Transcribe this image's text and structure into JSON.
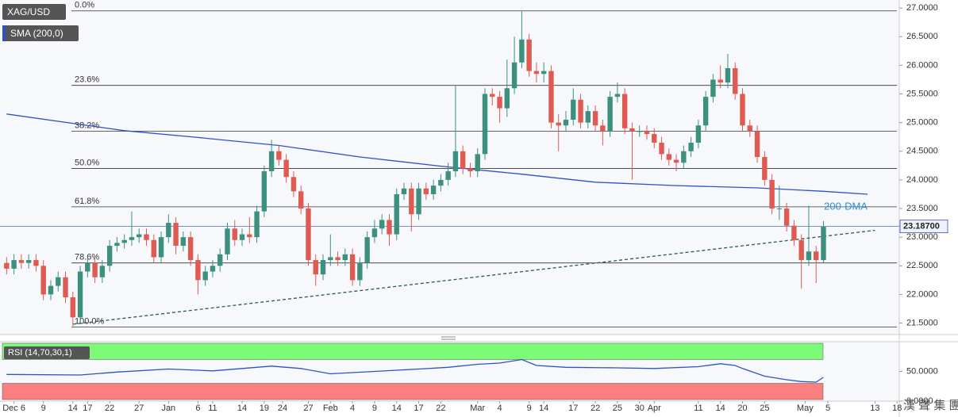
{
  "chart_data": {
    "type": "candlestick",
    "symbol": "XAG/USD",
    "indicator": "SMA (200,0)",
    "colors": {
      "up": "#3d8f7e",
      "down": "#df5a50",
      "sma": "#3050c8",
      "rsi": "#3050c8",
      "trend": "#2a5a4a"
    },
    "xlim": [
      -0.9,
      121.3
    ],
    "ylim": [
      21.3,
      27.14
    ],
    "yticks": [
      {
        "value": 21.5,
        "label": "21.5000"
      },
      {
        "value": 22.0,
        "label": "22.0000"
      },
      {
        "value": 22.5,
        "label": "22.5000"
      },
      {
        "value": 23.0,
        "label": "23.0000"
      },
      {
        "value": 23.5,
        "label": "23.5000"
      },
      {
        "value": 24.0,
        "label": "24.0000"
      },
      {
        "value": 24.5,
        "label": "24.5000"
      },
      {
        "value": 25.0,
        "label": "25.0000"
      },
      {
        "value": 25.5,
        "label": "25.5000"
      },
      {
        "value": 26.0,
        "label": "26.0000"
      },
      {
        "value": 26.5,
        "label": "26.5000"
      },
      {
        "value": 27.0,
        "label": "27.0000"
      }
    ],
    "xticks": [
      {
        "value": 1,
        "label": "Dec 6"
      },
      {
        "value": 5,
        "label": "9"
      },
      {
        "value": 9,
        "label": "14"
      },
      {
        "value": 11,
        "label": "17"
      },
      {
        "value": 14,
        "label": "22"
      },
      {
        "value": 18,
        "label": "27"
      },
      {
        "value": 22,
        "label": "Jan"
      },
      {
        "value": 26,
        "label": "6"
      },
      {
        "value": 28,
        "label": "11"
      },
      {
        "value": 32,
        "label": "14"
      },
      {
        "value": 35,
        "label": "19"
      },
      {
        "value": 37.5,
        "label": "24"
      },
      {
        "value": 41,
        "label": "27"
      },
      {
        "value": 44,
        "label": "Feb"
      },
      {
        "value": 47,
        "label": "4"
      },
      {
        "value": 50,
        "label": "9"
      },
      {
        "value": 53,
        "label": "14"
      },
      {
        "value": 56,
        "label": "17"
      },
      {
        "value": 59,
        "label": "22"
      },
      {
        "value": 64,
        "label": "Mar"
      },
      {
        "value": 67,
        "label": "4"
      },
      {
        "value": 71,
        "label": "9"
      },
      {
        "value": 73,
        "label": "14"
      },
      {
        "value": 77,
        "label": "17"
      },
      {
        "value": 80,
        "label": "22"
      },
      {
        "value": 83,
        "label": "25"
      },
      {
        "value": 86,
        "label": "30"
      },
      {
        "value": 88,
        "label": "Apr"
      },
      {
        "value": 94,
        "label": "11"
      },
      {
        "value": 97,
        "label": "14"
      },
      {
        "value": 100,
        "label": "20"
      },
      {
        "value": 103,
        "label": "25"
      },
      {
        "value": 108.5,
        "label": "May"
      },
      {
        "value": 111.6,
        "label": "5"
      },
      {
        "value": 118,
        "label": "13"
      },
      {
        "value": 121,
        "label": "18"
      }
    ],
    "open": [
      22.55,
      22.45,
      22.6,
      22.55,
      22.6,
      22.5,
      22.0,
      22.15,
      22.3,
      21.95,
      21.6,
      22.4,
      22.55,
      22.3,
      22.5,
      22.85,
      22.9,
      22.95,
      23.0,
      23.05,
      22.95,
      22.65,
      23.0,
      23.25,
      22.85,
      23.0,
      22.6,
      22.25,
      22.4,
      22.5,
      22.7,
      23.15,
      22.95,
      23.05,
      23.0,
      23.45,
      24.15,
      24.5,
      24.35,
      24.05,
      23.8,
      23.5,
      22.6,
      22.35,
      22.6,
      22.65,
      22.6,
      22.7,
      22.25,
      22.55,
      23.0,
      23.15,
      23.3,
      23.05,
      23.75,
      23.85,
      23.4,
      23.85,
      23.75,
      23.9,
      24.0,
      24.15,
      24.5,
      24.2,
      24.15,
      24.45,
      25.5,
      25.45,
      25.25,
      25.6,
      26.05,
      26.45,
      25.9,
      25.85,
      25.9,
      25.0,
      24.95,
      25.05,
      25.4,
      25.0,
      25.2,
      24.95,
      24.85,
      25.45,
      25.5,
      24.9,
      24.85,
      24.85,
      24.8,
      24.65,
      24.45,
      24.35,
      24.3,
      24.5,
      24.65,
      24.95,
      25.45,
      25.75,
      25.7,
      25.95,
      25.5,
      24.95,
      24.85,
      24.4,
      24.0,
      23.5,
      23.5,
      23.2,
      22.95,
      22.6,
      22.75,
      22.6
    ],
    "high": [
      22.65,
      22.7,
      22.7,
      22.7,
      22.7,
      22.6,
      22.25,
      22.4,
      22.4,
      22.05,
      22.5,
      22.65,
      22.65,
      22.6,
      22.95,
      23.0,
      23.05,
      23.45,
      23.15,
      23.15,
      23.05,
      23.1,
      23.4,
      23.35,
      23.1,
      23.1,
      22.7,
      22.5,
      22.6,
      22.8,
      23.25,
      23.3,
      23.15,
      23.35,
      23.55,
      24.25,
      24.7,
      24.6,
      24.45,
      24.15,
      23.9,
      23.6,
      22.7,
      22.7,
      23.05,
      22.75,
      22.8,
      22.8,
      22.65,
      23.1,
      23.3,
      23.4,
      23.4,
      23.85,
      23.95,
      23.95,
      23.95,
      23.95,
      24.0,
      24.1,
      24.3,
      25.65,
      24.6,
      24.3,
      24.55,
      25.6,
      25.6,
      25.55,
      26.1,
      26.5,
      26.95,
      26.55,
      26.05,
      26.05,
      26.0,
      25.15,
      25.2,
      25.6,
      25.5,
      25.3,
      25.3,
      25.05,
      25.55,
      25.7,
      25.6,
      25.0,
      24.95,
      24.95,
      24.9,
      24.75,
      24.55,
      24.45,
      24.6,
      24.75,
      25.05,
      25.55,
      25.85,
      26.0,
      26.2,
      26.05,
      25.6,
      25.05,
      24.95,
      24.5,
      24.1,
      23.9,
      23.6,
      23.3,
      23.05,
      23.55,
      22.85,
      23.28
    ],
    "low": [
      22.35,
      22.35,
      22.45,
      22.45,
      22.4,
      21.9,
      21.9,
      22.05,
      21.85,
      21.45,
      21.5,
      22.3,
      22.2,
      22.2,
      22.4,
      22.75,
      22.8,
      22.85,
      22.9,
      22.85,
      22.55,
      22.55,
      22.9,
      22.7,
      22.75,
      22.5,
      22.0,
      22.15,
      22.3,
      22.4,
      22.6,
      22.85,
      22.85,
      22.9,
      22.9,
      23.35,
      24.05,
      24.25,
      23.95,
      23.7,
      23.4,
      22.5,
      22.15,
      22.25,
      22.5,
      22.5,
      22.5,
      22.15,
      22.15,
      22.45,
      22.9,
      23.05,
      22.85,
      22.95,
      23.65,
      23.1,
      23.3,
      23.65,
      23.65,
      23.8,
      23.9,
      24.05,
      24.1,
      24.05,
      24.05,
      24.35,
      25.3,
      25.0,
      25.1,
      25.5,
      25.95,
      25.8,
      25.7,
      25.7,
      24.9,
      24.5,
      24.85,
      24.95,
      24.9,
      24.9,
      24.85,
      24.6,
      24.75,
      25.35,
      24.8,
      24.0,
      24.75,
      24.7,
      24.55,
      24.35,
      24.25,
      24.15,
      24.2,
      24.4,
      24.55,
      24.85,
      25.35,
      25.6,
      25.6,
      25.4,
      24.85,
      24.75,
      24.3,
      23.9,
      23.4,
      23.3,
      23.1,
      22.85,
      22.1,
      22.5,
      22.2,
      22.55
    ],
    "close": [
      22.45,
      22.6,
      22.55,
      22.6,
      22.5,
      22.0,
      22.15,
      22.3,
      21.95,
      21.6,
      22.4,
      22.55,
      22.3,
      22.5,
      22.85,
      22.9,
      22.95,
      23.0,
      23.05,
      22.95,
      22.65,
      23.0,
      23.25,
      22.85,
      23.0,
      22.6,
      22.25,
      22.4,
      22.5,
      22.7,
      23.15,
      22.95,
      23.05,
      23.0,
      23.45,
      24.15,
      24.5,
      24.35,
      24.05,
      23.8,
      23.5,
      22.6,
      22.35,
      22.6,
      22.65,
      22.6,
      22.7,
      22.25,
      22.55,
      23.0,
      23.15,
      23.3,
      23.05,
      23.75,
      23.85,
      23.4,
      23.85,
      23.75,
      23.9,
      24.0,
      24.15,
      24.5,
      24.2,
      24.15,
      24.45,
      25.5,
      25.45,
      25.25,
      25.6,
      26.05,
      26.45,
      25.9,
      25.85,
      25.9,
      25.0,
      24.95,
      25.05,
      25.4,
      25.0,
      25.2,
      24.95,
      24.85,
      25.45,
      25.5,
      24.9,
      24.85,
      24.85,
      24.8,
      24.65,
      24.45,
      24.35,
      24.3,
      24.5,
      24.65,
      24.95,
      25.45,
      25.75,
      25.7,
      25.95,
      25.5,
      24.95,
      24.85,
      24.4,
      24.0,
      23.5,
      23.5,
      23.2,
      22.95,
      22.6,
      22.75,
      22.6,
      23.19
    ],
    "sma": {
      "x": [
        0,
        16,
        26,
        37,
        48,
        59,
        70,
        80,
        91,
        102,
        111,
        117
      ],
      "values": [
        25.15,
        24.86,
        24.74,
        24.6,
        24.4,
        24.24,
        24.1,
        23.96,
        23.9,
        23.86,
        23.8,
        23.75
      ]
    },
    "sma_annotation": "200-DMA",
    "trendline": {
      "x": [
        9,
        118
      ],
      "values": [
        21.48,
        23.12
      ]
    },
    "fib_levels": [
      {
        "label": "0.0%",
        "value": 26.95
      },
      {
        "label": "23.6%",
        "value": 25.65
      },
      {
        "label": "38.2%",
        "value": 24.85
      },
      {
        "label": "50.0%",
        "value": 24.2
      },
      {
        "label": "61.8%",
        "value": 23.53
      },
      {
        "label": "78.6%",
        "value": 22.55
      },
      {
        "label": "100.0%",
        "value": 21.43
      }
    ],
    "last_price": {
      "value": 23.187,
      "label": "23.18700"
    },
    "rsi": {
      "name": "RSI (14,70,30,1)",
      "ylim": [
        0,
        100
      ],
      "overbought": 70,
      "oversold": 30,
      "yticks": [
        {
          "value": 50,
          "label": "50.0000"
        },
        {
          "value": 0,
          "label": "0.0000"
        }
      ],
      "x": [
        0,
        10,
        15,
        22,
        28,
        36,
        40,
        44,
        50,
        56,
        60,
        64,
        67,
        70,
        72,
        76,
        83,
        88,
        94,
        97,
        99,
        100,
        103,
        106,
        108,
        110,
        111
      ],
      "values": [
        45,
        44,
        49,
        54,
        51,
        59,
        55,
        46,
        50,
        54,
        57,
        62,
        64,
        70,
        60,
        57,
        56,
        55,
        58,
        63,
        60,
        55,
        42,
        36,
        33,
        32,
        40
      ]
    },
    "watermark": "漢 聲 集 團"
  }
}
